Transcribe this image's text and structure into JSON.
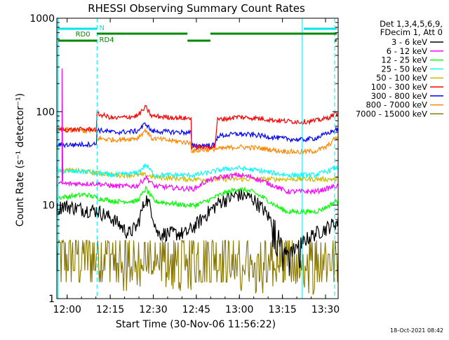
{
  "chart_data": {
    "type": "line",
    "title": "RHESSI Observing Summary Count Rates",
    "xlabel": "Start Time (30-Nov-06 11:56:22)",
    "ylabel": "Count Rate (s⁻¹ detector⁻¹)",
    "x_unit": "minutes after 11:56:22",
    "xlim": [
      0,
      98
    ],
    "ylim": [
      1,
      1000
    ],
    "y_scale": "log",
    "x_ticks": [
      {
        "label": "12:00",
        "t": 3.6
      },
      {
        "label": "12:15",
        "t": 18.6
      },
      {
        "label": "12:30",
        "t": 33.6
      },
      {
        "label": "12:45",
        "t": 48.6
      },
      {
        "label": "13:00",
        "t": 63.6
      },
      {
        "label": "13:15",
        "t": 78.6
      },
      {
        "label": "13:30",
        "t": 93.6
      }
    ],
    "y_ticks": [
      {
        "label": "1",
        "v": 1
      },
      {
        "label": "10",
        "v": 10
      },
      {
        "label": "100",
        "v": 100
      },
      {
        "label": "1000",
        "v": 1000
      }
    ],
    "legend_header": [
      "Det 1,3,4,5,6,9,",
      "FDecim 1, Att 0"
    ],
    "legend_position": "right",
    "series": [
      {
        "name": "3 - 6 keV",
        "color": "#000000",
        "base": 8.5,
        "gap_value": 6.0,
        "points": [
          [
            0,
            9
          ],
          [
            2,
            10
          ],
          [
            10,
            9
          ],
          [
            14,
            8.8
          ],
          [
            20,
            7
          ],
          [
            25,
            5
          ],
          [
            28,
            6
          ],
          [
            31,
            12
          ],
          [
            33,
            9
          ],
          [
            35,
            5
          ],
          [
            45,
            5
          ],
          [
            48,
            6
          ],
          [
            52,
            8
          ],
          [
            57,
            11
          ],
          [
            63,
            13
          ],
          [
            68,
            12
          ],
          [
            72,
            9
          ],
          [
            76,
            6
          ],
          [
            78,
            4
          ],
          [
            80,
            3
          ],
          [
            85,
            4
          ],
          [
            90,
            5
          ],
          [
            93,
            5.5
          ],
          [
            97,
            6.5
          ]
        ]
      },
      {
        "name": "6 - 12 keV",
        "color": "#ff00ff",
        "base": 16,
        "points": [
          [
            0,
            17
          ],
          [
            10,
            17
          ],
          [
            14,
            17
          ],
          [
            20,
            16
          ],
          [
            28,
            16
          ],
          [
            31,
            20
          ],
          [
            34,
            16
          ],
          [
            45,
            15
          ],
          [
            48,
            15
          ],
          [
            52,
            18
          ],
          [
            57,
            20
          ],
          [
            63,
            21
          ],
          [
            68,
            20
          ],
          [
            72,
            18
          ],
          [
            76,
            16
          ],
          [
            80,
            14
          ],
          [
            85,
            14
          ],
          [
            90,
            14
          ],
          [
            94,
            15
          ],
          [
            97,
            16
          ]
        ]
      },
      {
        "name": "12 - 25 keV",
        "color": "#00ff00",
        "base": 11,
        "points": [
          [
            0,
            12
          ],
          [
            10,
            13
          ],
          [
            14,
            12
          ],
          [
            20,
            11
          ],
          [
            28,
            11
          ],
          [
            31,
            15
          ],
          [
            34,
            11
          ],
          [
            45,
            10
          ],
          [
            48,
            10
          ],
          [
            52,
            11
          ],
          [
            57,
            13
          ],
          [
            63,
            15
          ],
          [
            68,
            14
          ],
          [
            72,
            12
          ],
          [
            76,
            10
          ],
          [
            80,
            8.5
          ],
          [
            85,
            8.5
          ],
          [
            90,
            8.5
          ],
          [
            94,
            9.5
          ],
          [
            97,
            11
          ]
        ]
      },
      {
        "name": "25 - 50 keV",
        "color": "#00ffff",
        "base": 21,
        "points": [
          [
            0,
            23
          ],
          [
            10,
            23
          ],
          [
            14,
            22
          ],
          [
            20,
            21
          ],
          [
            28,
            22
          ],
          [
            31,
            27
          ],
          [
            34,
            21
          ],
          [
            45,
            21
          ],
          [
            48,
            21
          ],
          [
            52,
            22
          ],
          [
            57,
            24
          ],
          [
            63,
            25
          ],
          [
            68,
            24
          ],
          [
            72,
            23
          ],
          [
            76,
            22
          ],
          [
            80,
            21
          ],
          [
            85,
            21
          ],
          [
            90,
            21
          ],
          [
            94,
            23
          ],
          [
            97,
            25
          ]
        ]
      },
      {
        "name": "50 - 100 keV",
        "color": "#ccbb00",
        "base": 22,
        "points": [
          [
            0,
            24
          ],
          [
            10,
            23
          ],
          [
            14,
            22
          ],
          [
            20,
            21
          ],
          [
            28,
            21
          ],
          [
            31,
            21
          ],
          [
            34,
            20
          ],
          [
            45,
            19
          ],
          [
            48,
            19
          ],
          [
            97,
            19
          ]
        ]
      },
      {
        "name": "100 - 300 keV",
        "color": "#ff0000",
        "base": 90,
        "points": [
          [
            0,
            64
          ],
          [
            13.9,
            65
          ],
          [
            14,
            95
          ],
          [
            20,
            85
          ],
          [
            28,
            90
          ],
          [
            31,
            112
          ],
          [
            33,
            90
          ],
          [
            45,
            85
          ],
          [
            46.9,
            85
          ],
          [
            47,
            42
          ],
          [
            55,
            42
          ],
          [
            56,
            82
          ],
          [
            63,
            88
          ],
          [
            70,
            85
          ],
          [
            78,
            80
          ],
          [
            85,
            78
          ],
          [
            90,
            80
          ],
          [
            94,
            85
          ],
          [
            97,
            95
          ]
        ]
      },
      {
        "name": "300 - 800 keV",
        "color": "#0000ff",
        "base": 62,
        "points": [
          [
            0,
            44
          ],
          [
            13.9,
            45
          ],
          [
            14,
            64
          ],
          [
            20,
            60
          ],
          [
            28,
            62
          ],
          [
            31,
            75
          ],
          [
            33,
            62
          ],
          [
            45,
            60
          ],
          [
            46.9,
            60
          ],
          [
            47,
            43
          ],
          [
            55,
            44
          ],
          [
            56,
            55
          ],
          [
            63,
            58
          ],
          [
            70,
            56
          ],
          [
            78,
            52
          ],
          [
            85,
            50
          ],
          [
            90,
            52
          ],
          [
            94,
            58
          ],
          [
            97,
            64
          ]
        ]
      },
      {
        "name": "800 - 7000 keV",
        "color": "#ff8800",
        "base": 50,
        "points": [
          [
            0,
            64
          ],
          [
            13.9,
            62
          ],
          [
            14,
            52
          ],
          [
            20,
            50
          ],
          [
            28,
            52
          ],
          [
            31,
            64
          ],
          [
            33,
            52
          ],
          [
            45,
            47
          ],
          [
            46.9,
            46
          ],
          [
            47,
            38
          ],
          [
            55,
            40
          ],
          [
            56,
            40
          ],
          [
            63,
            42
          ],
          [
            70,
            41
          ],
          [
            78,
            38
          ],
          [
            85,
            37
          ],
          [
            90,
            38
          ],
          [
            94,
            42
          ],
          [
            97,
            52
          ]
        ]
      },
      {
        "name": "7000 - 15000 keV",
        "color": "#887700",
        "base": 4.2,
        "points": [
          [
            0,
            4.2
          ],
          [
            97,
            4.2
          ]
        ]
      }
    ],
    "state_bars": [
      {
        "label": "N",
        "color": "#00e5ee"
      },
      {
        "label": "RD0",
        "color": "#008800"
      },
      {
        "label": "RD4",
        "color": "#008800"
      }
    ]
  },
  "footer": {
    "timestamp": "18-Oct-2021 08:42"
  }
}
